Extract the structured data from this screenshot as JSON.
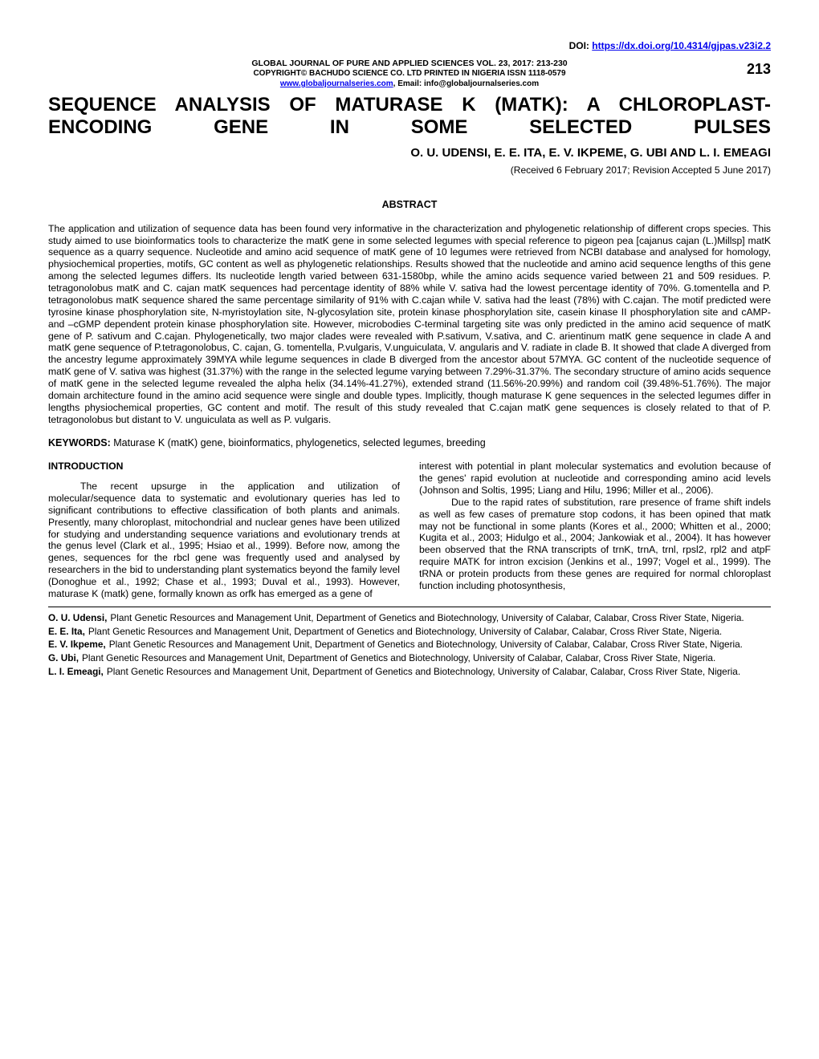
{
  "doi_label": "DOI:",
  "doi_link_text": "https://dx.doi.org/10.4314/gjpas.v23i2.2",
  "journal_line": "GLOBAL JOURNAL OF PURE AND APPLIED SCIENCES VOL. 23, 2017: 213-230",
  "copyright_line": "COPYRIGHT© BACHUDO SCIENCE CO. LTD PRINTED IN NIGERIA ISSN 1118-0579",
  "site_link": "www.globaljournalseries.com",
  "site_tail": ", Email: info@globaljournalseries.com",
  "page_number": "213",
  "title": "SEQUENCE ANALYSIS OF MATURASE K (MATK): A CHLOROPLAST-ENCODING GENE IN SOME SELECTED PULSES",
  "authors": "O. U. UDENSI, E. E. ITA, E. V. IKPEME, G. UBI AND L. I. EMEAGI",
  "received": "(Received 6 February 2017; Revision Accepted 5 June 2017)",
  "abstract_heading": "ABSTRACT",
  "abstract_body": "The application and utilization of sequence data has been found very informative in the characterization and phylogenetic relationship of different crops species. This study aimed to use bioinformatics tools to characterize the matK gene in some selected legumes with special reference to pigeon pea [cajanus cajan (L.)Millsp] matK sequence as a quarry sequence. Nucleotide and amino acid sequence of matK gene of 10 legumes were retrieved from NCBI database and analysed for homology, physiochemical properties, motifs, GC content as well as phylogenetic relationships. Results showed that the nucleotide and amino acid sequence lengths of this gene among the selected legumes differs. Its nucleotide length varied between 631-1580bp, while the amino acids sequence varied between 21 and 509 residues. P. tetragonolobus matK and C. cajan matK sequences had percentage identity of 88% while V. sativa had the lowest percentage identity of 70%. G.tomentella and P. tetragonolobus matK sequence shared the same percentage similarity of 91% with C.cajan while V. sativa had the least (78%) with C.cajan. The motif predicted were tyrosine kinase phosphorylation site, N-myristoylation site, N-glycosylation site, protein kinase phosphorylation site, casein kinase II phosphorylation site and cAMP- and –cGMP dependent protein kinase phosphorylation site. However, microbodies C-terminal targeting site was only predicted in the amino acid sequence of matK gene of P. sativum and C.cajan. Phylogenetically, two major clades were revealed with P.sativum, V.sativa, and C. arientinum matK gene sequence in clade A and matK gene sequence of P.tetragonolobus, C. cajan, G. tomentella, P.vulgaris, V.unguiculata, V. angularis and V. radiate in clade B. It showed that clade A diverged from the ancestry legume approximately 39MYA while legume sequences in clade B diverged from the ancestor about 57MYA. GC content of the nucleotide sequence of matK gene of V. sativa was highest (31.37%) with the range in the selected legume varying between 7.29%-31.37%. The secondary structure of amino acids sequence of matK gene in the selected legume revealed the alpha helix (34.14%-41.27%), extended strand (11.56%-20.99%) and random coil (39.48%-51.76%). The major domain architecture found in the amino acid sequence were single and double types. Implicitly, though maturase K gene sequences in the selected legumes differ in lengths physiochemical properties, GC content and motif. The result of this study revealed that C.cajan matK gene sequences is closely related to that of P. tetragonolobus but distant to V. unguiculata as well as P. vulgaris.",
  "keywords_label": "KEYWORDS:",
  "keywords_text": " Maturase K (matK) gene, bioinformatics, phylogenetics, selected legumes, breeding",
  "intro_heading": "INTRODUCTION",
  "intro_para1": "The recent upsurge in the application and utilization of molecular/sequence data to systematic and evolutionary queries has led to significant contributions to effective classification of both plants and animals. Presently, many chloroplast, mitochondrial and nuclear genes have been utilized for studying and understanding sequence variations and evolutionary trends at the genus level (Clark et al., 1995; Hsiao et al., 1999). Before now, among the genes, sequences for the rbcl gene was frequently used and analysed by researchers in the bid to understanding plant systematics beyond the family level (Donoghue et al., 1992; Chase et al., 1993; Duval et al., 1993). However, maturase K (matk) gene, formally known as orfk has emerged as a gene of",
  "intro_para2": "interest with potential in plant molecular systematics and evolution because of the genes' rapid evolution at nucleotide and corresponding amino acid levels (Johnson and Soltis, 1995; Liang and Hilu, 1996; Miller et al., 2006).",
  "intro_para3": "Due to the rapid rates of substitution, rare presence of frame shift indels as well as few cases of premature stop codons, it has been opined that matk may not be functional in some plants (Kores et al., 2000; Whitten et al., 2000; Kugita et al., 2003; Hidulgo et al., 2004; Jankowiak et al., 2004). It has however been observed that the RNA transcripts of trnK, trnA, trnl, rpsl2, rpl2 and atpF require MATK for intron excision (Jenkins et al., 1997; Vogel et al., 1999). The tRNA or protein products from these genes are required for normal chloroplast function including photosynthesis,",
  "affiliations": [
    {
      "name": "O. U. Udensi,",
      "text": "Plant Genetic Resources and Management Unit, Department of Genetics and Biotechnology, University of Calabar, Calabar, Cross River State, Nigeria."
    },
    {
      "name": "E. E. Ita,",
      "text": "Plant Genetic Resources and Management Unit, Department of Genetics and Biotechnology, University of Calabar, Calabar, Cross River State, Nigeria."
    },
    {
      "name": "E. V. Ikpeme,",
      "text": "Plant Genetic Resources and Management Unit, Department of Genetics and Biotechnology, University of Calabar, Calabar, Cross River State, Nigeria."
    },
    {
      "name": "G. Ubi,",
      "text": "Plant Genetic Resources and Management Unit, Department of Genetics and Biotechnology, University of Calabar, Calabar, Cross River State, Nigeria."
    },
    {
      "name": "L. I. Emeagi,",
      "text": "Plant Genetic Resources and Management Unit, Department of Genetics and Biotechnology, University of Calabar, Calabar, Cross River State, Nigeria."
    }
  ]
}
